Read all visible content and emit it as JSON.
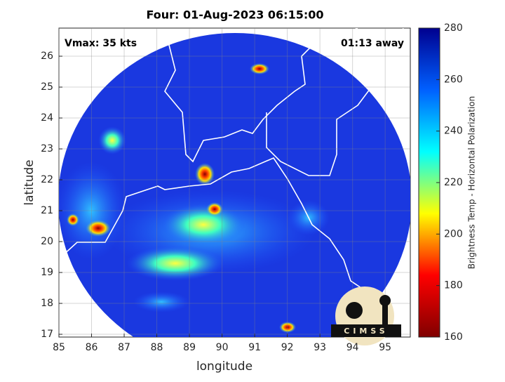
{
  "chart_data": {
    "type": "map",
    "title": "Four: 01-Aug-2023 06:15:00",
    "annotations": {
      "left": "Vmax: 35 kts",
      "right": "01:13 away"
    },
    "xlabel": "longitude",
    "ylabel": "latitude",
    "xlim": [
      85,
      95.77
    ],
    "ylim": [
      16.91,
      26.91
    ],
    "xticks": [
      85,
      86,
      87,
      88,
      89,
      90,
      91,
      92,
      93,
      94,
      95
    ],
    "yticks": [
      17,
      18,
      19,
      20,
      21,
      22,
      23,
      24,
      25,
      26
    ],
    "grid": true,
    "colorbar": {
      "label": "Brightness Temp - Horizontal Polarization",
      "lim": [
        160,
        280
      ],
      "ticks": [
        160,
        180,
        200,
        220,
        240,
        260,
        280
      ],
      "colors": [
        "#800000",
        "#ff0000",
        "#ffff00",
        "#00ffff",
        "#0060ff",
        "#00008f"
      ]
    },
    "logo": "CIMSS"
  }
}
